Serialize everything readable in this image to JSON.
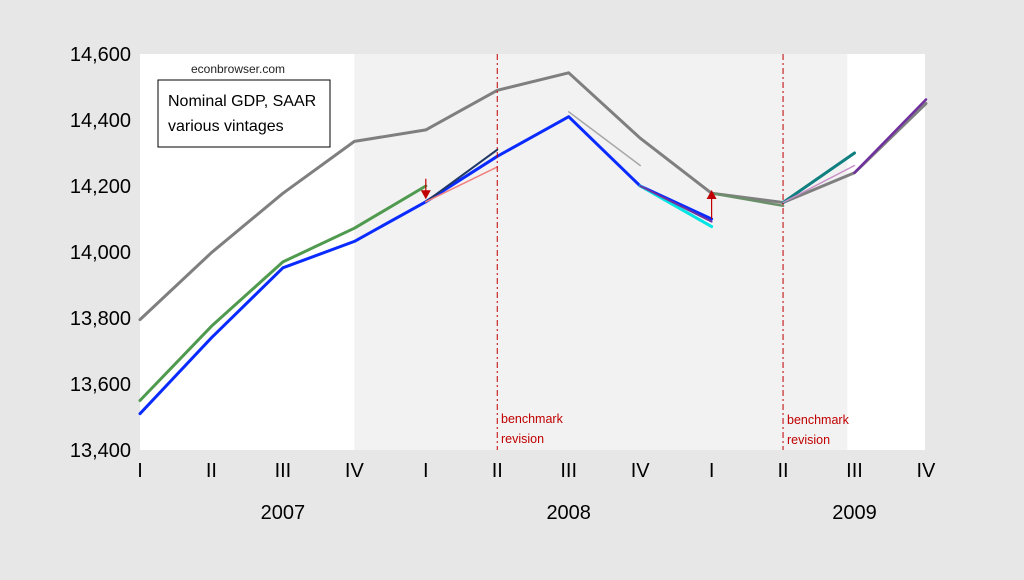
{
  "watermark": "econbrowser.com",
  "legend_box": {
    "line1": "Nominal GDP, SAAR",
    "line2": "various vintages"
  },
  "annotations": {
    "benchmark_1": {
      "line1": "benchmark",
      "line2": "revision"
    },
    "benchmark_2": {
      "line1": "benchmark",
      "line2": "revision"
    }
  },
  "colors": {
    "background": "#e7e7e7",
    "plot_area": "#ffffff",
    "shaded_region": "#f2f2f2",
    "benchmark_line": "#c00000",
    "arrow": "#c00000"
  },
  "chart_data": {
    "type": "line",
    "title": "",
    "xlabel": "",
    "ylabel": "",
    "ylim": [
      13400,
      14600
    ],
    "yticks": [
      13400,
      13600,
      13800,
      14000,
      14200,
      14400,
      14600
    ],
    "ytick_labels": [
      "13,400",
      "13,600",
      "13,800",
      "14,000",
      "14,200",
      "14,400",
      "14,600"
    ],
    "quarters": [
      "I",
      "II",
      "III",
      "IV",
      "I",
      "II",
      "III",
      "IV",
      "I",
      "II",
      "III",
      "IV"
    ],
    "years": [
      {
        "label": "2007",
        "center_index": 2
      },
      {
        "label": "2008",
        "center_index": 6
      },
      {
        "label": "2009",
        "center_index": 10
      }
    ],
    "shaded_x_range": [
      3,
      9.9
    ],
    "benchmark_revisions_x": [
      5,
      9
    ],
    "grid": false,
    "series": [
      {
        "color": "#7f7f7f",
        "width": 3,
        "points": [
          [
            0,
            13795
          ],
          [
            1,
            13998
          ],
          [
            2,
            14178
          ],
          [
            3,
            14335
          ],
          [
            4,
            14370
          ],
          [
            5,
            14490
          ],
          [
            6,
            14543
          ],
          [
            7,
            14345
          ],
          [
            8,
            14178
          ],
          [
            9,
            14150
          ],
          [
            10,
            14240
          ],
          [
            11,
            14450
          ]
        ]
      },
      {
        "color": "#4f9a4f",
        "width": 3,
        "points": [
          [
            0,
            13550
          ],
          [
            1,
            13775
          ],
          [
            2,
            13970
          ],
          [
            3,
            14072
          ],
          [
            4,
            14200
          ]
        ]
      },
      {
        "color": "#0a2bff",
        "width": 3,
        "points": [
          [
            0,
            13510
          ],
          [
            1,
            13740
          ],
          [
            2,
            13952
          ],
          [
            3,
            14032
          ],
          [
            4,
            14152
          ],
          [
            5,
            14290
          ],
          [
            6,
            14410
          ],
          [
            7,
            14200
          ],
          [
            8,
            14100
          ]
        ]
      },
      {
        "color": "#1f3864",
        "width": 2,
        "points": [
          [
            4,
            14152
          ],
          [
            5,
            14310
          ]
        ]
      },
      {
        "color": "#f08080",
        "width": 1.5,
        "points": [
          [
            4,
            14152
          ],
          [
            5,
            14258
          ]
        ]
      },
      {
        "color": "#a6a6a6",
        "width": 1.5,
        "points": [
          [
            6,
            14425
          ],
          [
            7,
            14262
          ]
        ]
      },
      {
        "color": "#00e5e5",
        "width": 3,
        "points": [
          [
            7,
            14200
          ],
          [
            8,
            14077
          ]
        ]
      },
      {
        "color": "#7030a0",
        "width": 2,
        "points": [
          [
            7,
            14200
          ],
          [
            8,
            14092
          ]
        ]
      },
      {
        "color": "#6b8e6b",
        "width": 2.5,
        "points": [
          [
            8,
            14178
          ],
          [
            9,
            14140
          ]
        ]
      },
      {
        "color": "#0f7f7f",
        "width": 3,
        "points": [
          [
            9,
            14150
          ],
          [
            10,
            14300
          ]
        ]
      },
      {
        "color": "#c890c8",
        "width": 1.5,
        "points": [
          [
            9,
            14150
          ],
          [
            10,
            14262
          ]
        ]
      },
      {
        "color": "#7030a0",
        "width": 2.5,
        "points": [
          [
            10,
            14240
          ],
          [
            11,
            14462
          ]
        ]
      }
    ],
    "arrows": [
      {
        "x": 4,
        "from": 14222,
        "to": 14160
      },
      {
        "x": 8,
        "from": 14100,
        "to": 14188
      }
    ]
  }
}
